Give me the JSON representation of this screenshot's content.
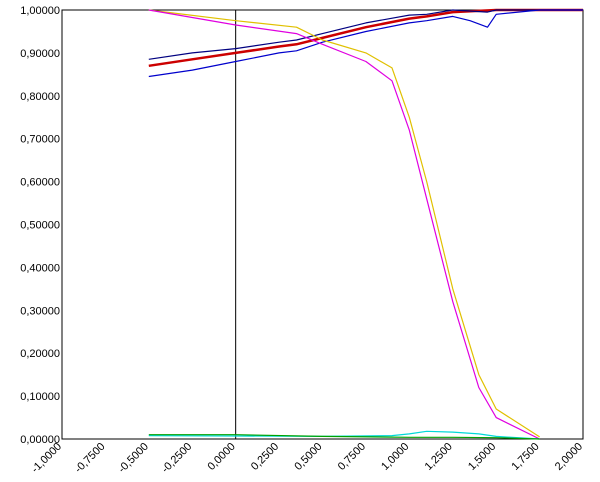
{
  "chart_data": {
    "type": "line",
    "title": "",
    "xlabel": "",
    "ylabel": "",
    "xlim": [
      -1.0,
      2.0
    ],
    "ylim": [
      0.0,
      1.0
    ],
    "grid": true,
    "x_ticks": [
      -1.0,
      -0.75,
      -0.5,
      -0.25,
      0.0,
      0.25,
      0.5,
      0.75,
      1.0,
      1.25,
      1.5,
      1.75,
      2.0
    ],
    "x_tick_labels": [
      "-1,0000",
      "-0,7500",
      "-0,5000",
      "-0,2500",
      "0,0000",
      "0,2500",
      "0,5000",
      "0,7500",
      "1,0000",
      "1,2500",
      "1,5000",
      "1,7500",
      "2,0000"
    ],
    "y_ticks": [
      0.0,
      0.1,
      0.2,
      0.3,
      0.4,
      0.5,
      0.6,
      0.7,
      0.8,
      0.9,
      1.0
    ],
    "y_tick_labels": [
      "0,00000",
      "0,10000",
      "0,20000",
      "0,30000",
      "0,40000",
      "0,50000",
      "0,60000",
      "0,70000",
      "0,80000",
      "0,90000",
      "1,00000"
    ],
    "series": [
      {
        "color": "#cc0000",
        "width": 2.5,
        "x": [
          -0.5,
          -0.25,
          0.0,
          0.25,
          0.35,
          0.5,
          0.75,
          1.0,
          1.1,
          1.25,
          1.5,
          1.75,
          2.0
        ],
        "y": [
          0.87,
          0.885,
          0.9,
          0.915,
          0.92,
          0.935,
          0.96,
          0.98,
          0.985,
          0.995,
          1.0,
          1.0,
          1.0
        ]
      },
      {
        "color": "#000080",
        "width": 1.2,
        "x": [
          -0.5,
          -0.25,
          0.0,
          0.25,
          0.35,
          0.5,
          0.75,
          1.0,
          1.1,
          1.25,
          1.45,
          1.5,
          1.75,
          2.0
        ],
        "y": [
          0.885,
          0.9,
          0.91,
          0.925,
          0.93,
          0.945,
          0.97,
          0.988,
          0.99,
          1.0,
          0.995,
          1.0,
          1.0,
          1.0
        ]
      },
      {
        "color": "#0000cc",
        "width": 1.2,
        "x": [
          -0.5,
          -0.25,
          0.0,
          0.25,
          0.35,
          0.5,
          0.75,
          1.0,
          1.1,
          1.25,
          1.35,
          1.45,
          1.5,
          1.75,
          2.0
        ],
        "y": [
          0.845,
          0.86,
          0.88,
          0.9,
          0.905,
          0.925,
          0.95,
          0.97,
          0.975,
          0.985,
          0.975,
          0.96,
          0.99,
          1.0,
          1.0
        ]
      },
      {
        "color": "#e0c000",
        "width": 1.2,
        "x": [
          -0.5,
          0.0,
          0.35,
          0.5,
          0.75,
          0.9,
          1.0,
          1.1,
          1.25,
          1.4,
          1.5,
          1.75
        ],
        "y": [
          1.0,
          0.975,
          0.96,
          0.93,
          0.9,
          0.865,
          0.75,
          0.6,
          0.35,
          0.15,
          0.07,
          0.005
        ]
      },
      {
        "color": "#e000e0",
        "width": 1.2,
        "x": [
          -0.5,
          0.0,
          0.35,
          0.5,
          0.75,
          0.9,
          1.0,
          1.1,
          1.25,
          1.4,
          1.5,
          1.75
        ],
        "y": [
          1.0,
          0.965,
          0.945,
          0.92,
          0.88,
          0.835,
          0.72,
          0.56,
          0.32,
          0.12,
          0.05,
          0.0
        ]
      },
      {
        "color": "#00d8d8",
        "width": 1.2,
        "x": [
          -0.5,
          0.0,
          0.5,
          0.9,
          1.0,
          1.1,
          1.25,
          1.4,
          1.5,
          1.75
        ],
        "y": [
          0.008,
          0.007,
          0.006,
          0.008,
          0.012,
          0.018,
          0.016,
          0.012,
          0.006,
          0.0
        ]
      },
      {
        "color": "#00a000",
        "width": 1.2,
        "x": [
          -0.5,
          0.0,
          0.5,
          1.0,
          1.25,
          1.5,
          1.75
        ],
        "y": [
          0.01,
          0.01,
          0.006,
          0.004,
          0.004,
          0.003,
          0.0
        ]
      }
    ]
  }
}
